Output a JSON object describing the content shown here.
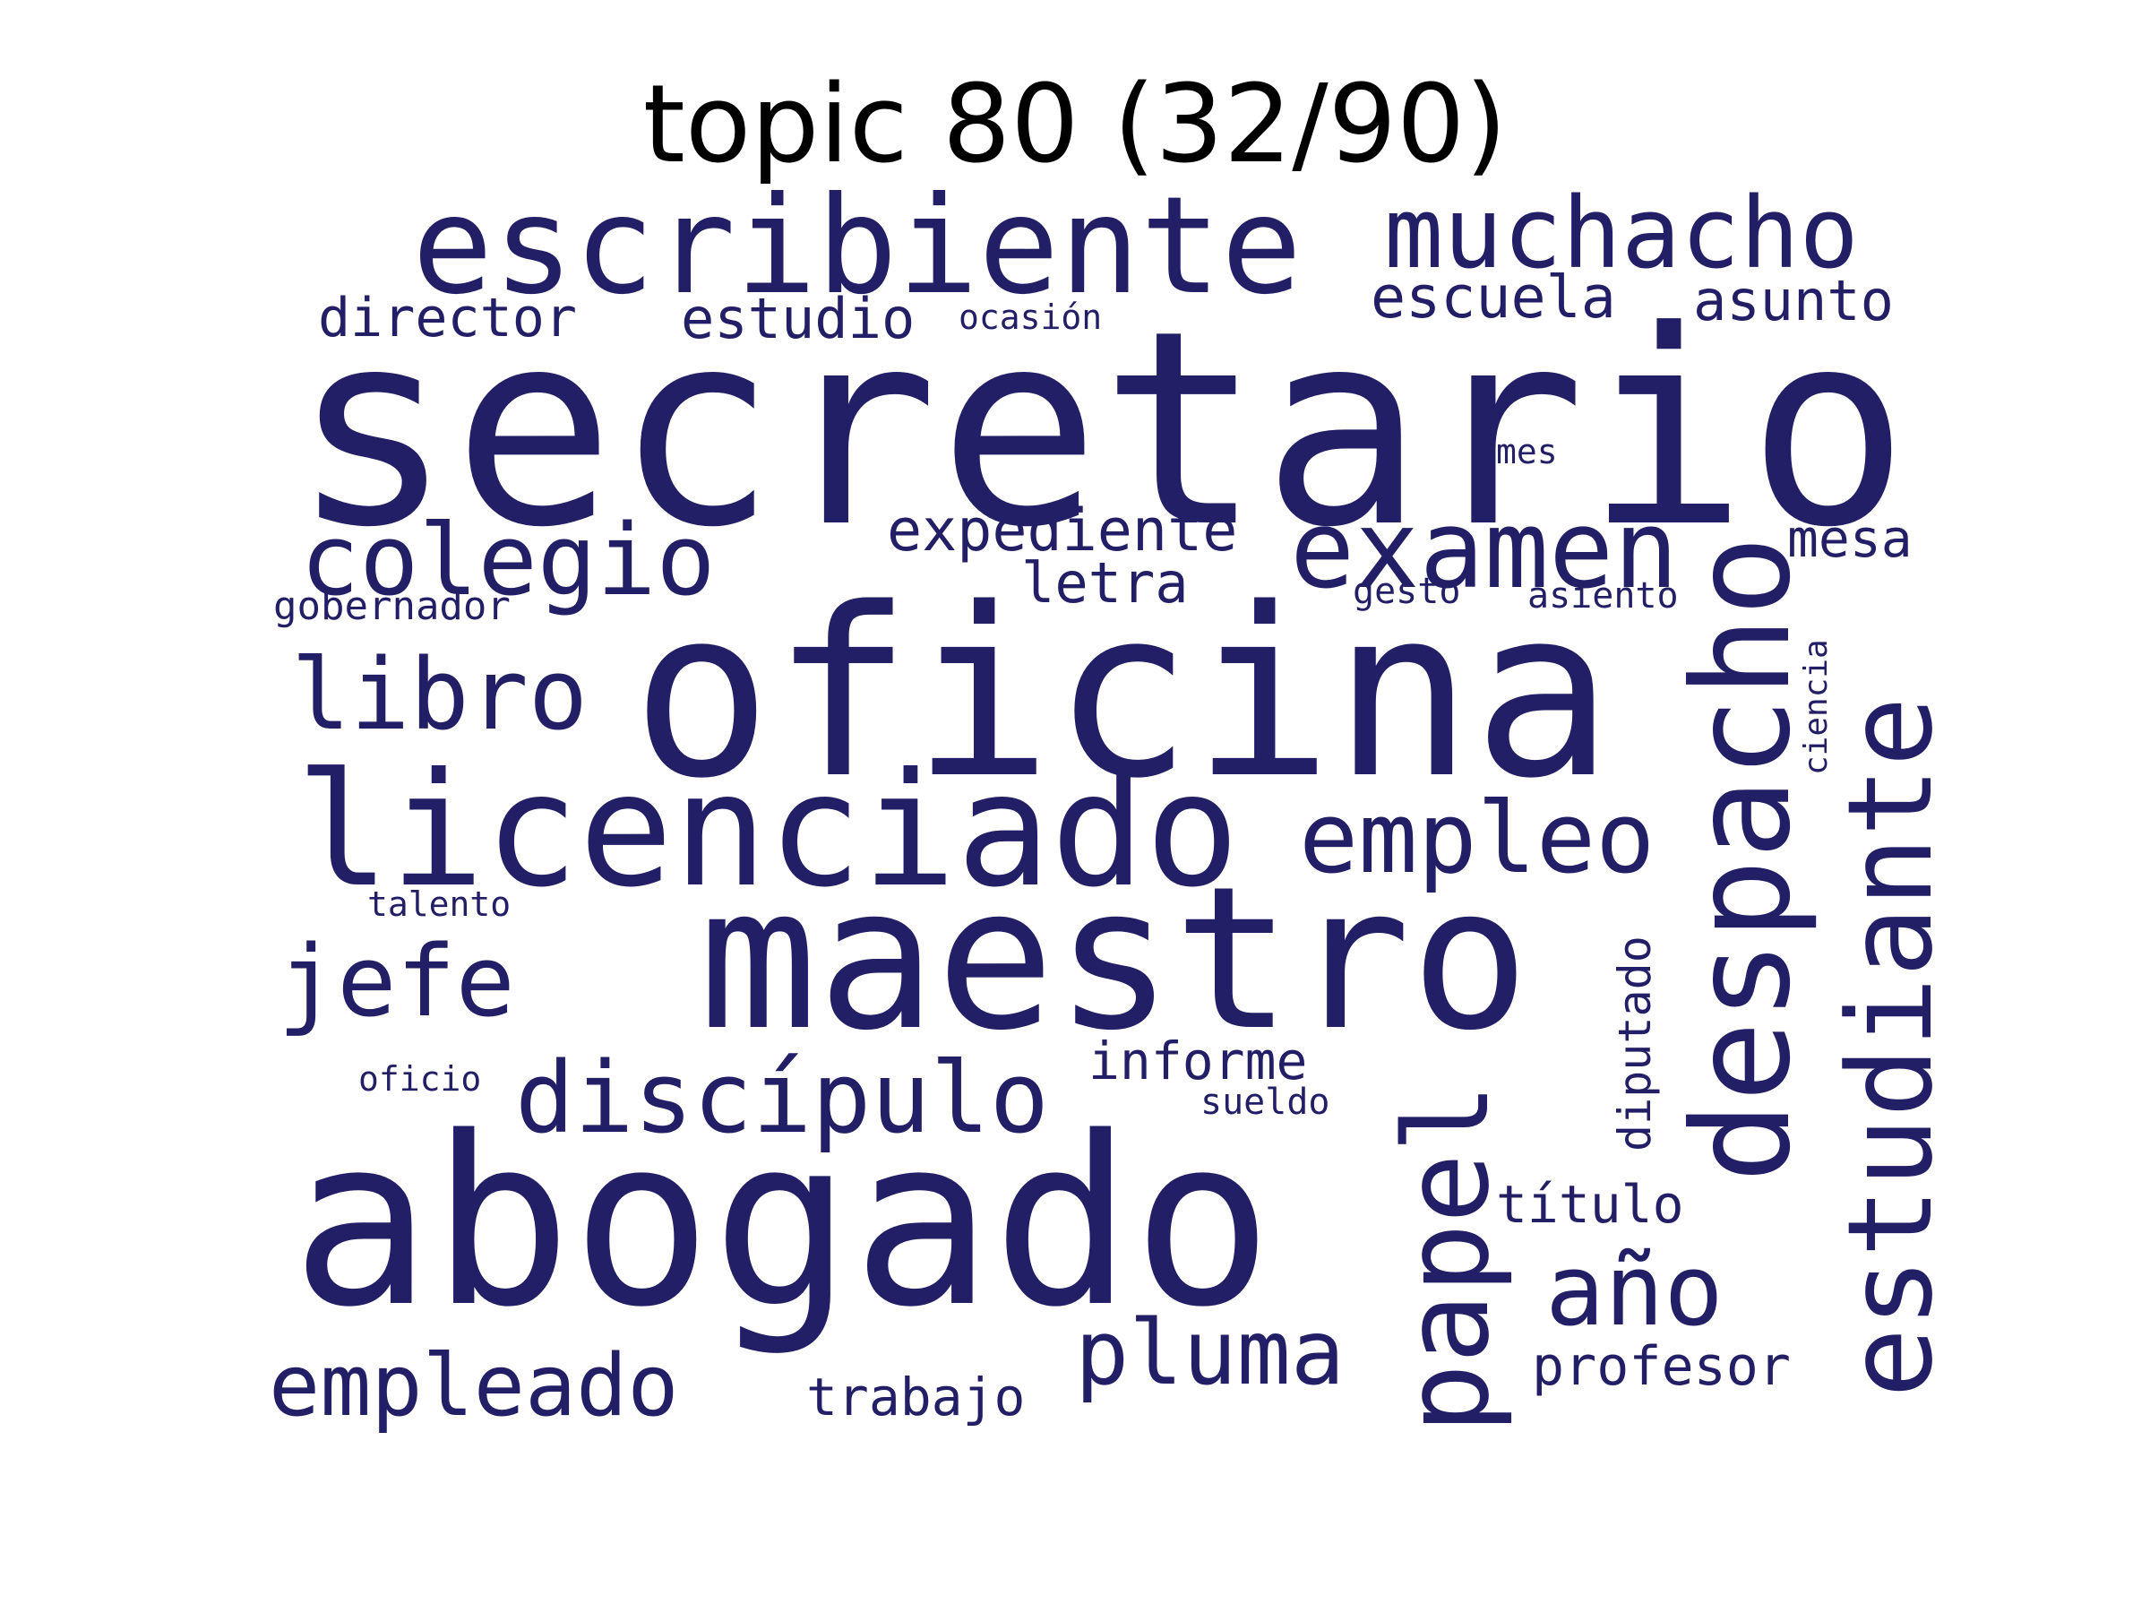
{
  "title": "topic 80 (32/90)",
  "text_color": "#221f66",
  "words": [
    {
      "text": "secretario",
      "size": 300,
      "vertical": false
    },
    {
      "text": "oficina",
      "size": 260,
      "vertical": false
    },
    {
      "text": "abogado",
      "size": 260,
      "vertical": false
    },
    {
      "text": "maestro",
      "size": 220,
      "vertical": false
    },
    {
      "text": "licenciado",
      "size": 175,
      "vertical": false
    },
    {
      "text": "escribiente",
      "size": 150,
      "vertical": false
    },
    {
      "text": "despacho",
      "size": 150,
      "vertical": true
    },
    {
      "text": "estudiante",
      "size": 130,
      "vertical": true
    },
    {
      "text": "papel",
      "size": 130,
      "vertical": true
    },
    {
      "text": "examen",
      "size": 120,
      "vertical": false
    },
    {
      "text": "muchacho",
      "size": 110,
      "vertical": false
    },
    {
      "text": "colegio",
      "size": 110,
      "vertical": false
    },
    {
      "text": "libro",
      "size": 110,
      "vertical": false
    },
    {
      "text": "empleo",
      "size": 110,
      "vertical": false
    },
    {
      "text": "jefe",
      "size": 110,
      "vertical": false
    },
    {
      "text": "discípulo",
      "size": 110,
      "vertical": false
    },
    {
      "text": "año",
      "size": 110,
      "vertical": false
    },
    {
      "text": "pluma",
      "size": 100,
      "vertical": false
    },
    {
      "text": "empleado",
      "size": 95,
      "vertical": false
    },
    {
      "text": "expediente",
      "size": 65,
      "vertical": false
    },
    {
      "text": "escuela",
      "size": 65,
      "vertical": false
    },
    {
      "text": "asunto",
      "size": 62,
      "vertical": false
    },
    {
      "text": "estudio",
      "size": 62,
      "vertical": false
    },
    {
      "text": "director",
      "size": 60,
      "vertical": false
    },
    {
      "text": "letra",
      "size": 62,
      "vertical": false
    },
    {
      "text": "informe",
      "size": 58,
      "vertical": false
    },
    {
      "text": "título",
      "size": 58,
      "vertical": false
    },
    {
      "text": "profesor",
      "size": 60,
      "vertical": false
    },
    {
      "text": "trabajo",
      "size": 58,
      "vertical": false
    },
    {
      "text": "mesa",
      "size": 58,
      "vertical": false
    },
    {
      "text": "diputado",
      "size": 50,
      "vertical": true
    },
    {
      "text": "gobernador",
      "size": 44,
      "vertical": false
    },
    {
      "text": "asiento",
      "size": 40,
      "vertical": false
    },
    {
      "text": "gesto",
      "size": 40,
      "vertical": false
    },
    {
      "text": "sueldo",
      "size": 40,
      "vertical": false
    },
    {
      "text": "ocasión",
      "size": 38,
      "vertical": false
    },
    {
      "text": "mes",
      "size": 38,
      "vertical": false
    },
    {
      "text": "talento",
      "size": 38,
      "vertical": false
    },
    {
      "text": "oficio",
      "size": 38,
      "vertical": false
    },
    {
      "text": "ciencia",
      "size": 36,
      "vertical": true
    }
  ]
}
